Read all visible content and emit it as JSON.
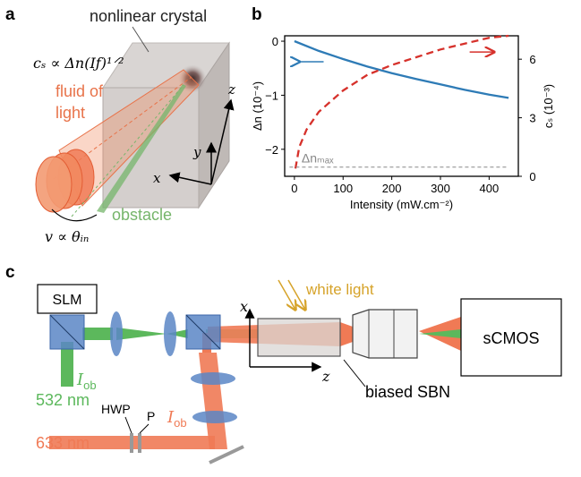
{
  "panels": {
    "a": "a",
    "b": "b",
    "c": "c"
  },
  "panel_a": {
    "crystal_label": "nonlinear crystal",
    "sound_speed_eq": "cₛ ∝ Δn(Iƒ)¹ᐟ²",
    "fluid_label_line1": "fluid of",
    "fluid_label_line2": "light",
    "obstacle_label": "obstacle",
    "velocity_eq": "v ∝ θᵢₙ",
    "axis_x": "x",
    "axis_y": "y",
    "axis_z": "z",
    "colors": {
      "fluid": "#e8734a",
      "obstacle": "#76b56b",
      "crystal": "#c9c4c2"
    }
  },
  "chart_data": {
    "type": "line",
    "xlabel": "Intensity (mW.cm⁻²)",
    "ylabel_left": "Δn (10⁻⁴)",
    "ylabel_right": "cₛ (10⁻³)",
    "xlim": [
      -20,
      460
    ],
    "ylim_left": [
      -2.5,
      0.1
    ],
    "ylim_right": [
      0,
      7.2
    ],
    "x_ticks": [
      0,
      100,
      200,
      300,
      400
    ],
    "x_tick_labels": [
      "0",
      "100",
      "200",
      "300",
      "400"
    ],
    "y_left_ticks": [
      0,
      -1,
      -2
    ],
    "y_left_tick_labels": [
      "0",
      "−1",
      "−2"
    ],
    "y_right_ticks": [
      0,
      3,
      6
    ],
    "y_right_tick_labels": [
      "0",
      "3",
      "6"
    ],
    "annotation": "Δnₘₐₓ",
    "series": [
      {
        "axis": "left",
        "color": "#2e7bb6",
        "style": "solid",
        "x": [
          0,
          50,
          100,
          150,
          200,
          250,
          300,
          350,
          400,
          440
        ],
        "y": [
          0,
          -0.18,
          -0.33,
          -0.47,
          -0.59,
          -0.7,
          -0.8,
          -0.9,
          -0.99,
          -1.05
        ]
      },
      {
        "axis": "right",
        "color": "#d6312b",
        "style": "dashed",
        "x": [
          2,
          10,
          25,
          50,
          100,
          150,
          200,
          250,
          300,
          350,
          400,
          440
        ],
        "y": [
          0.4,
          1.5,
          2.4,
          3.3,
          4.4,
          5.2,
          5.7,
          6.1,
          6.5,
          6.8,
          7.1,
          7.2
        ]
      },
      {
        "axis": "left",
        "color": "#888888",
        "style": "dashed",
        "x": [
          -10,
          440
        ],
        "y": [
          -2.33,
          -2.33
        ]
      }
    ]
  },
  "panel_c": {
    "slm_label": "SLM",
    "white_light_label": "white light",
    "scmos_label": "sCMOS",
    "sbn_label": "biased SBN",
    "green_beam_label": "I",
    "green_beam_sub": "ob",
    "green_wavelength": "532 nm",
    "red_wavelength": "633 nm",
    "red_beam_label": "I",
    "red_beam_sub": "ob",
    "hwp_label": "HWP",
    "p_label": "P",
    "axis_x": "x",
    "axis_z": "z",
    "colors": {
      "green": "#5cb85c",
      "red": "#f07a55",
      "blue_optic": "#5a86c5",
      "white_light": "#d6a32a"
    }
  }
}
